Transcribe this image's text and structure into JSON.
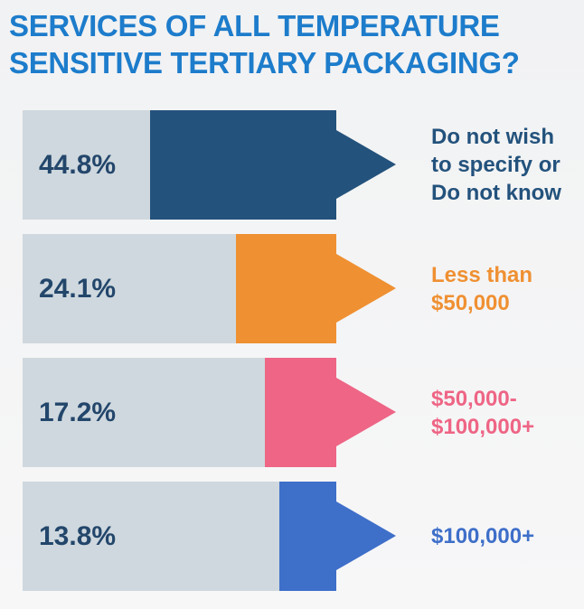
{
  "chart_data": {
    "type": "bar",
    "title": "SERVICES OF ALL TEMPERATURE SENSITIVE TERTIARY PACKAGING?",
    "categories": [
      "Do not wish\nto specify or\nDo not know",
      "Less than\n$50,000",
      "$50,000-\n$100,000+",
      "$100,000+"
    ],
    "values": [
      44.8,
      24.1,
      17.2,
      13.8
    ],
    "value_labels": [
      "44.8%",
      "24.1%",
      "17.2%",
      "13.8%"
    ],
    "colors": [
      "#23527c",
      "#ef9032",
      "#ee6585",
      "#3e6fc9"
    ]
  }
}
